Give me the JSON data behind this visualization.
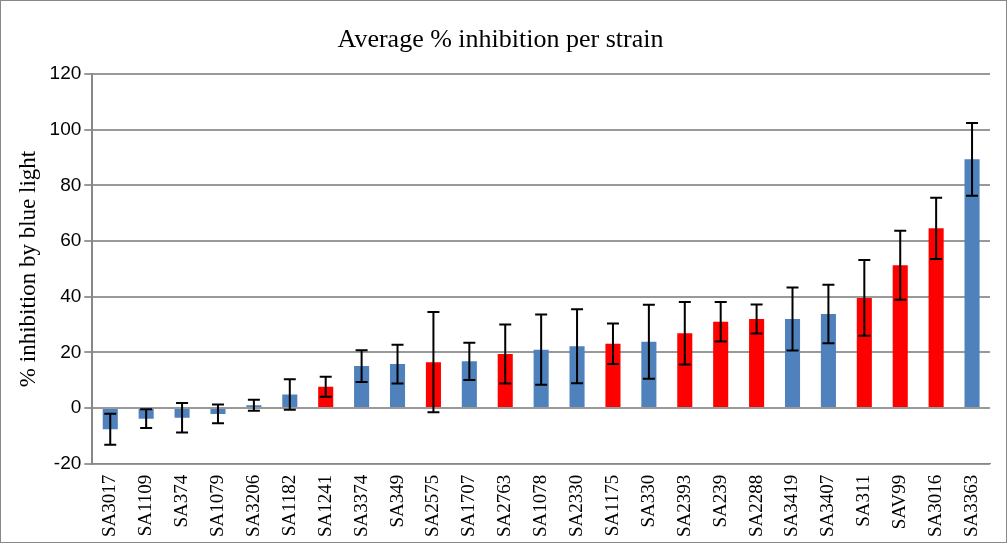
{
  "chart_data": {
    "type": "bar",
    "title": "Average % inhibition per strain",
    "ylabel": "% inhibition by blue light",
    "categories": [
      "SA3017",
      "SA1109",
      "SA374",
      "SA1079",
      "SA3206",
      "SA1182",
      "SA1241",
      "SA3374",
      "SA349",
      "SA2575",
      "SA1707",
      "SA2763",
      "SA1078",
      "SA2330",
      "SA1175",
      "SA330",
      "SA2393",
      "SA239",
      "SA2288",
      "SA3419",
      "SA3407",
      "SA311",
      "SAV99",
      "SA3016",
      "SA3363"
    ],
    "values": [
      -7.6,
      -3.8,
      -3.5,
      -2.1,
      1.0,
      4.9,
      7.7,
      15.1,
      15.8,
      16.5,
      16.8,
      19.4,
      21,
      22.2,
      23.1,
      23.8,
      26.9,
      31.0,
      32.0,
      32.0,
      33.8,
      39.6,
      51.3,
      64.6,
      89.4
    ],
    "errors": [
      5.6,
      3.4,
      5.3,
      3.4,
      2,
      5.5,
      3.6,
      5.7,
      7,
      18,
      6.7,
      10.6,
      12.6,
      13.3,
      7.3,
      13.3,
      11.2,
      7.1,
      5.2,
      11.3,
      10.5,
      13.6,
      12.4,
      11,
      13.1
    ],
    "colors": [
      "#4f81bd",
      "#4f81bd",
      "#4f81bd",
      "#4f81bd",
      "#4f81bd",
      "#4f81bd",
      "#ff0000",
      "#4f81bd",
      "#4f81bd",
      "#ff0000",
      "#4f81bd",
      "#ff0000",
      "#4f81bd",
      "#4f81bd",
      "#ff0000",
      "#4f81bd",
      "#ff0000",
      "#ff0000",
      "#ff0000",
      "#4f81bd",
      "#4f81bd",
      "#ff0000",
      "#ff0000",
      "#ff0000",
      "#4f81bd"
    ],
    "ylim": [
      -20,
      120
    ],
    "yticks": [
      -20,
      0,
      20,
      40,
      60,
      80,
      100,
      120
    ],
    "grid": "y",
    "legend": false
  }
}
